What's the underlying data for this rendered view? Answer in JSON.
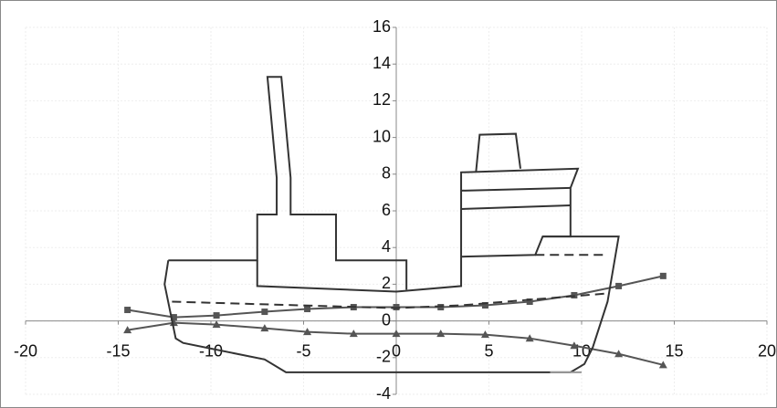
{
  "chart_data": {
    "type": "line",
    "xlim": [
      -20,
      20
    ],
    "xticks": [
      -20,
      -15,
      -10,
      -5,
      0,
      5,
      10,
      15,
      20
    ],
    "ylim": [
      -4,
      16
    ],
    "yticks": [
      -4,
      -2,
      0,
      2,
      4,
      6,
      8,
      10,
      12,
      14,
      16
    ],
    "grid": true,
    "series": [
      {
        "color": "#555555",
        "marker": "square",
        "dash": false,
        "x": [
          -14.5,
          -12,
          -9.7,
          -7.1,
          -4.8,
          -2.3,
          0,
          2.4,
          4.8,
          7.2,
          9.6,
          12,
          14.4
        ],
        "values": [
          0.6,
          0.2,
          0.3,
          0.5,
          0.65,
          0.75,
          0.75,
          0.75,
          0.85,
          1.05,
          1.4,
          1.9,
          2.45
        ]
      },
      {
        "color": "#555555",
        "marker": "triangle",
        "dash": false,
        "x": [
          -14.5,
          -12,
          -9.7,
          -7.1,
          -4.8,
          -2.3,
          0,
          2.4,
          4.8,
          7.2,
          9.6,
          12,
          14.4
        ],
        "values": [
          -0.5,
          -0.1,
          -0.2,
          -0.4,
          -0.6,
          -0.7,
          -0.7,
          -0.7,
          -0.75,
          -0.95,
          -1.35,
          -1.8,
          -2.4
        ]
      },
      {
        "color": "#333333",
        "marker": "none",
        "dash": false,
        "x": [
          -12.3,
          -7.5,
          -7.5,
          -6.45,
          -6.45,
          -6.95,
          -6.2,
          -5.7,
          -5.7,
          -3.25,
          -3.25,
          0.55,
          0.55
        ],
        "values": [
          3.3,
          3.3,
          5.8,
          5.8,
          7.8,
          13.3,
          13.3,
          7.8,
          5.8,
          5.8,
          3.3,
          3.3,
          1.7
        ]
      },
      {
        "color": "#333333",
        "marker": "none",
        "dash": false,
        "x": [
          -7.5,
          -7.5,
          0,
          3.5,
          3.5,
          9.8,
          9.4,
          9.4,
          7.9,
          7.5,
          3.5
        ],
        "values": [
          3.3,
          1.9,
          1.6,
          1.9,
          8.1,
          8.3,
          7.25,
          4.6,
          4.6,
          3.6,
          3.5
        ]
      },
      {
        "color": "#333333",
        "marker": "none",
        "dash": false,
        "x": [
          3.5,
          9.4
        ],
        "values": [
          7.1,
          7.25
        ]
      },
      {
        "color": "#333333",
        "marker": "none",
        "dash": false,
        "x": [
          3.5,
          9.4
        ],
        "values": [
          6.1,
          6.3
        ]
      },
      {
        "color": "#333333",
        "marker": "none",
        "dash": false,
        "x": [
          4.3,
          4.5,
          6.45,
          6.7
        ],
        "values": [
          8.1,
          10.15,
          10.2,
          8.3
        ]
      },
      {
        "color": "#333333",
        "marker": "none",
        "dash": false,
        "x": [
          7.9,
          12.0,
          11.4,
          10.6,
          10.15,
          9.4,
          -5.95,
          -7.1,
          -11.5,
          -11.9,
          -12.5,
          -12.3
        ],
        "values": [
          4.6,
          4.6,
          1.05,
          -1.45,
          -2.35,
          -2.8,
          -2.8,
          -2.1,
          -1.2,
          -0.95,
          2.0,
          3.3
        ]
      },
      {
        "color": "#333333",
        "marker": "none",
        "dash": true,
        "x": [
          -12.1,
          0,
          3.5,
          11.4
        ],
        "values": [
          1.05,
          0.7,
          0.85,
          1.5
        ]
      },
      {
        "color": "#333333",
        "marker": "none",
        "dash": true,
        "x": [
          7.5,
          11.4
        ],
        "values": [
          3.6,
          3.6
        ]
      },
      {
        "color": "#999999",
        "marker": "none",
        "dash": false,
        "x": [
          8.3,
          10
        ],
        "values": [
          -2.8,
          -2.8
        ]
      }
    ]
  }
}
